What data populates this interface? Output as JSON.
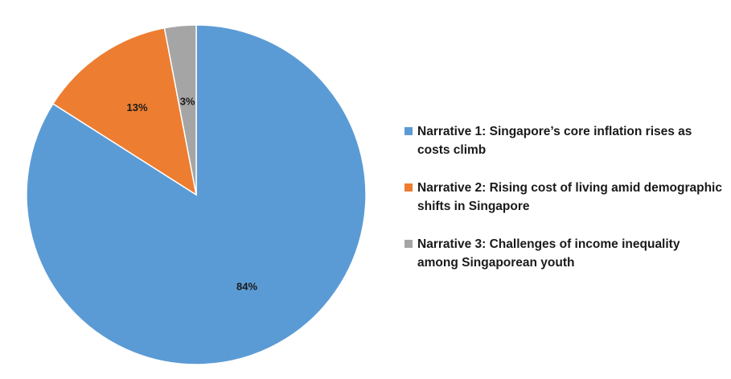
{
  "chart_data": {
    "type": "pie",
    "categories": [
      "Narrative 1: Singapore’s core inflation rises as costs climb",
      "Narrative 2: Rising cost of living amid demographic shifts in Singapore",
      "Narrative 3: Challenges of income inequality among Singaporean youth"
    ],
    "values": [
      84,
      13,
      3
    ],
    "labels": [
      "84%",
      "13%",
      "3%"
    ],
    "colors": [
      "#5B9BD5",
      "#ED7D31",
      "#A5A5A5"
    ],
    "start_angle": "12 o'clock, clockwise",
    "legend_position": "right"
  }
}
